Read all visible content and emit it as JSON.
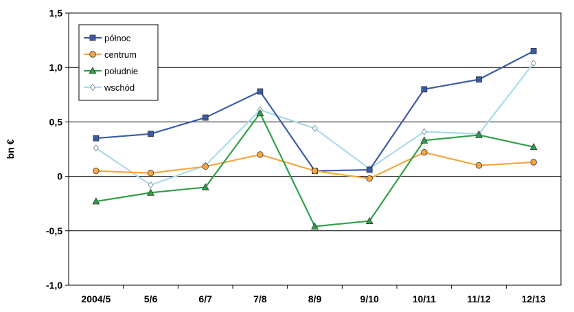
{
  "chart_data": {
    "type": "line",
    "ylabel": "bn €",
    "xlabel": "",
    "title": "",
    "categories": [
      "2004/5",
      "5/6",
      "6/7",
      "7/8",
      "8/9",
      "9/10",
      "10/11",
      "11/12",
      "12/13"
    ],
    "ylim": [
      -1.0,
      1.5
    ],
    "yticks": [
      -1.0,
      -0.5,
      0,
      0.5,
      1.0,
      1.5
    ],
    "ytick_labels": [
      "-1,0",
      "-0,5",
      "0",
      "0,5",
      "1,0",
      "1,5"
    ],
    "grid": "horizontal",
    "legend_position": "top-left",
    "series": [
      {
        "name": "północ",
        "color": "#3a5ba8",
        "marker": "square",
        "values": [
          0.35,
          0.39,
          0.54,
          0.78,
          0.05,
          0.06,
          0.8,
          0.89,
          1.15
        ]
      },
      {
        "name": "centrum",
        "color": "#f5a742",
        "marker": "circle",
        "values": [
          0.05,
          0.03,
          0.09,
          0.2,
          0.05,
          -0.02,
          0.22,
          0.1,
          0.13
        ]
      },
      {
        "name": "południe",
        "color": "#2fa048",
        "marker": "triangle",
        "values": [
          -0.23,
          -0.15,
          -0.1,
          0.58,
          -0.46,
          -0.41,
          0.33,
          0.38,
          0.27
        ]
      },
      {
        "name": "wschód",
        "color": "#a9dbe8",
        "marker": "diamond",
        "values": [
          0.26,
          -0.08,
          0.1,
          0.61,
          0.44,
          0.07,
          0.41,
          0.39,
          1.04
        ]
      }
    ]
  }
}
